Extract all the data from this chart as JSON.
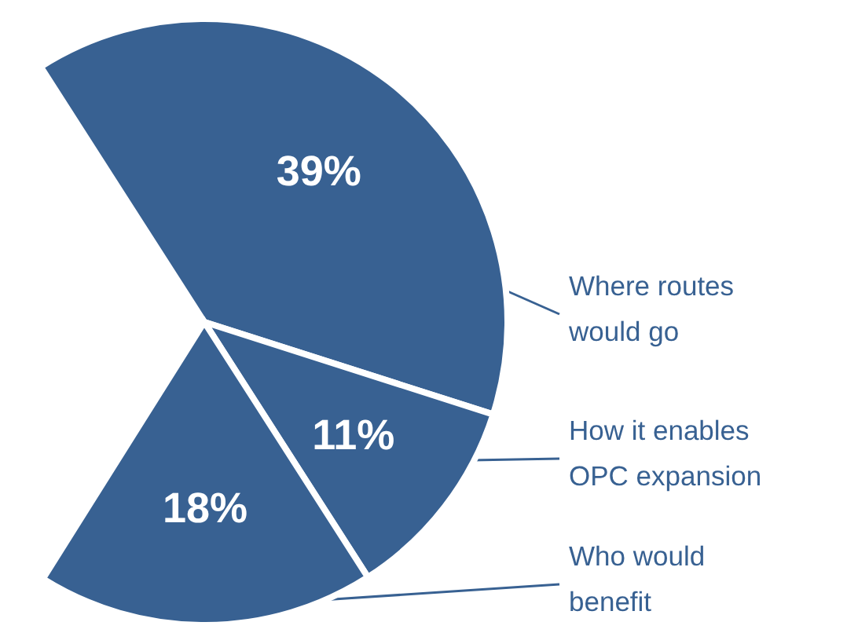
{
  "chart_data": {
    "type": "pie",
    "categories": [
      "Where routes would go",
      "How it enables OPC expansion",
      "Who would benefit"
    ],
    "values": [
      39,
      11,
      18
    ],
    "colors": [
      "#386192",
      "#386192",
      "#386192"
    ],
    "value_labels": [
      "39%",
      "11%",
      "18%"
    ]
  }
}
